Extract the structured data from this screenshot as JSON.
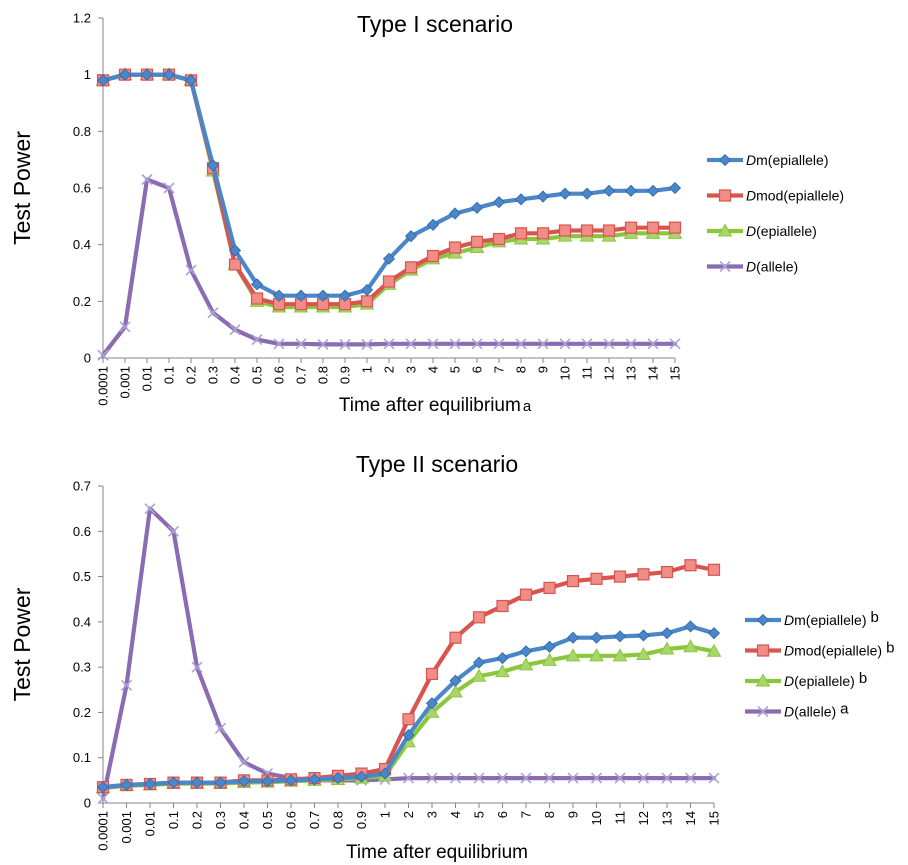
{
  "chart_data": [
    {
      "type": "line",
      "title": "Type I scenario",
      "xlabel": "Time after equilibrium",
      "xlabel_sup": "a",
      "ylabel": "Test Power",
      "ylim": [
        0,
        1.2
      ],
      "yticks": [
        "0",
        "0.2",
        "0.4",
        "0.6",
        "0.8",
        "1",
        "1.2"
      ],
      "categories": [
        "0.0001",
        "0.001",
        "0.01",
        "0.1",
        "0.2",
        "0.3",
        "0.4",
        "0.5",
        "0.6",
        "0.7",
        "0.8",
        "0.9",
        "1",
        "2",
        "3",
        "4",
        "5",
        "6",
        "7",
        "8",
        "9",
        "10",
        "11",
        "12",
        "13",
        "14",
        "15"
      ],
      "legend_position": "right",
      "series": [
        {
          "name_italic": "D",
          "name_rest": "m(epiallele)",
          "sup": "",
          "color": "#4a86c8",
          "marker": "diamond",
          "values": [
            0.98,
            1.0,
            1.0,
            1.0,
            0.98,
            0.68,
            0.38,
            0.26,
            0.22,
            0.22,
            0.22,
            0.22,
            0.24,
            0.35,
            0.43,
            0.47,
            0.51,
            0.53,
            0.55,
            0.56,
            0.57,
            0.58,
            0.58,
            0.59,
            0.59,
            0.59,
            0.6
          ]
        },
        {
          "name_italic": "D",
          "name_rest": "mod(epiallele)",
          "sup": "",
          "color": "#d9534f",
          "marker": "square",
          "values": [
            0.98,
            1.0,
            1.0,
            1.0,
            0.98,
            0.67,
            0.33,
            0.21,
            0.19,
            0.19,
            0.19,
            0.19,
            0.2,
            0.27,
            0.32,
            0.36,
            0.39,
            0.41,
            0.42,
            0.44,
            0.44,
            0.45,
            0.45,
            0.45,
            0.46,
            0.46,
            0.46
          ]
        },
        {
          "name_italic": "D",
          "name_rest": "(epiallele)",
          "sup": "",
          "color": "#8cc63f",
          "marker": "triangle",
          "values": [
            0.98,
            1.0,
            1.0,
            1.0,
            0.98,
            0.66,
            0.33,
            0.2,
            0.18,
            0.18,
            0.18,
            0.18,
            0.19,
            0.26,
            0.31,
            0.35,
            0.37,
            0.39,
            0.41,
            0.42,
            0.42,
            0.43,
            0.43,
            0.43,
            0.44,
            0.44,
            0.44
          ]
        },
        {
          "name_italic": "D",
          "name_rest": "(allele)",
          "sup": "",
          "color": "#8b6bb1",
          "marker": "x",
          "values": [
            0.01,
            0.11,
            0.63,
            0.6,
            0.31,
            0.16,
            0.1,
            0.065,
            0.05,
            0.05,
            0.048,
            0.048,
            0.048,
            0.05,
            0.05,
            0.05,
            0.05,
            0.05,
            0.05,
            0.05,
            0.05,
            0.05,
            0.05,
            0.05,
            0.05,
            0.05,
            0.05
          ]
        }
      ]
    },
    {
      "type": "line",
      "title": "Type II scenario",
      "xlabel": "Time after equilibrium",
      "xlabel_sup": "",
      "ylabel": "Test Power",
      "ylim": [
        0,
        0.7
      ],
      "yticks": [
        "0",
        "0.1",
        "0.2",
        "0.3",
        "0.4",
        "0.5",
        "0.6",
        "0.7"
      ],
      "categories": [
        "0.0001",
        "0.001",
        "0.01",
        "0.1",
        "0.2",
        "0.3",
        "0.4",
        "0.5",
        "0.6",
        "0.7",
        "0.8",
        "0.9",
        "1",
        "2",
        "3",
        "4",
        "5",
        "6",
        "7",
        "8",
        "9",
        "10",
        "11",
        "12",
        "13",
        "14",
        "15"
      ],
      "legend_position": "right",
      "series": [
        {
          "name_italic": "D",
          "name_rest": "m(epiallele)",
          "sup": "b",
          "color": "#4a86c8",
          "marker": "diamond",
          "values": [
            0.035,
            0.04,
            0.042,
            0.045,
            0.045,
            0.045,
            0.048,
            0.048,
            0.05,
            0.052,
            0.055,
            0.058,
            0.065,
            0.15,
            0.22,
            0.27,
            0.31,
            0.32,
            0.335,
            0.345,
            0.365,
            0.365,
            0.368,
            0.37,
            0.375,
            0.39,
            0.375
          ]
        },
        {
          "name_italic": "D",
          "name_rest": "mod(epiallele)",
          "sup": "b",
          "color": "#d9534f",
          "marker": "square",
          "values": [
            0.035,
            0.04,
            0.042,
            0.045,
            0.045,
            0.045,
            0.05,
            0.05,
            0.052,
            0.055,
            0.06,
            0.065,
            0.075,
            0.185,
            0.285,
            0.365,
            0.41,
            0.435,
            0.46,
            0.475,
            0.49,
            0.495,
            0.5,
            0.505,
            0.51,
            0.525,
            0.515
          ]
        },
        {
          "name_italic": "D",
          "name_rest": "(epiallele)",
          "sup": "b",
          "color": "#8cc63f",
          "marker": "triangle",
          "values": [
            0.033,
            0.038,
            0.04,
            0.043,
            0.043,
            0.043,
            0.045,
            0.046,
            0.048,
            0.05,
            0.052,
            0.055,
            0.06,
            0.135,
            0.2,
            0.245,
            0.28,
            0.29,
            0.305,
            0.315,
            0.325,
            0.325,
            0.325,
            0.328,
            0.34,
            0.345,
            0.335
          ]
        },
        {
          "name_italic": "D",
          "name_rest": "(allele)",
          "sup": "a",
          "color": "#8b6bb1",
          "marker": "x",
          "values": [
            0.01,
            0.26,
            0.65,
            0.6,
            0.3,
            0.165,
            0.09,
            0.065,
            0.055,
            0.05,
            0.05,
            0.05,
            0.052,
            0.055,
            0.055,
            0.055,
            0.055,
            0.055,
            0.055,
            0.055,
            0.055,
            0.055,
            0.055,
            0.055,
            0.055,
            0.055,
            0.055
          ]
        }
      ]
    }
  ]
}
